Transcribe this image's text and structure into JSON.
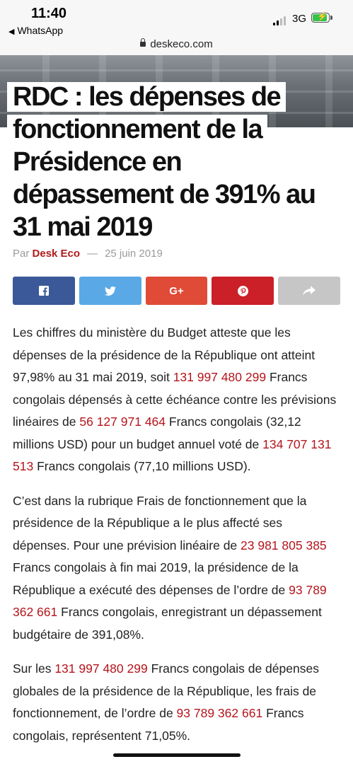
{
  "status_bar": {
    "time": "11:40",
    "back_app": "WhatsApp",
    "network": "3G",
    "battery_color": "#36c24c"
  },
  "url_bar": {
    "domain": "deskeco.com"
  },
  "article": {
    "title": "RDC : les dépenses de fonctionnement de la Présidence en dépassement de 391% au 31 mai 2019",
    "byline": {
      "prefix": "Par",
      "author": "Desk Eco",
      "separator": "—",
      "date": "25 juin 2019"
    },
    "share_buttons": [
      {
        "name": "facebook",
        "icon": "facebook-icon",
        "color": "#3b5998"
      },
      {
        "name": "twitter",
        "icon": "twitter-icon",
        "color": "#5aa9e6"
      },
      {
        "name": "google-plus",
        "icon": "google-plus-icon",
        "label": "G+",
        "color": "#df4b37"
      },
      {
        "name": "pinterest",
        "icon": "pinterest-icon",
        "color": "#cb2027"
      },
      {
        "name": "share",
        "icon": "share-arrow-icon",
        "color": "#c6c6c6"
      }
    ],
    "paragraphs": [
      {
        "t1": "Les chiffres du ministère du Budget atteste que les dépenses de la présidence de la République ont atteint 97,98% au 31 mai 2019, soit ",
        "n1": "131 997 480 299",
        "t2": " Francs congolais dépensés à cette échéance contre les prévisions linéaires de ",
        "n2": "56 127 971 464",
        "t3": " Francs congolais (32,12 millions USD) pour un budget annuel voté de ",
        "n3": "134 707 131 513",
        "t4": " Francs congolais (77,10 millions USD)."
      },
      {
        "t1": "C’est dans la rubrique Frais de fonctionnement que la présidence de la République a le plus affecté ses dépenses. Pour une prévision linéaire de ",
        "n1": "23 981 805 385",
        "t2": " Francs congolais à fin mai 2019, la présidence de la République a exécuté des dépenses de l’ordre de ",
        "n2": "93 789 362 661",
        "t3": " Francs congolais, enregistrant un dépassement budgétaire de 391,08%."
      },
      {
        "t1": "Sur les ",
        "n1": "131 997 480 299",
        "t2": " Francs congolais de dépenses globales de la présidence de la République, les frais de fonctionnement, de l’ordre de ",
        "n2": "93 789 362 661",
        "t3": " Francs congolais, représentent 71,05%."
      }
    ],
    "number_color": "#b5141b"
  }
}
